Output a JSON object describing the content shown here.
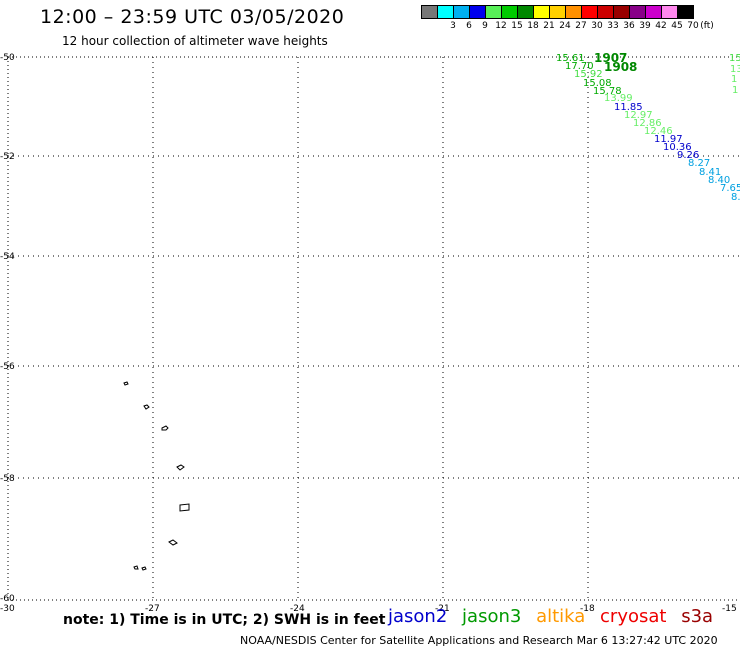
{
  "header": {
    "title": "12:00 – 23:59 UTC 03/05/2020",
    "subtitle": "12 hour collection of altimeter wave heights"
  },
  "legend": {
    "unit": "(ft)",
    "items": [
      {
        "label": "",
        "color": "#777777"
      },
      {
        "label": "3",
        "color": "#00ffff"
      },
      {
        "label": "6",
        "color": "#00b0f0"
      },
      {
        "label": "9",
        "color": "#0000ee"
      },
      {
        "label": "12",
        "color": "#58f058"
      },
      {
        "label": "15",
        "color": "#00cc00"
      },
      {
        "label": "18",
        "color": "#008800"
      },
      {
        "label": "21",
        "color": "#ffff00"
      },
      {
        "label": "24",
        "color": "#ffd000"
      },
      {
        "label": "27",
        "color": "#ff9000"
      },
      {
        "label": "30",
        "color": "#ff0000"
      },
      {
        "label": "33",
        "color": "#cc0000"
      },
      {
        "label": "36",
        "color": "#990000"
      },
      {
        "label": "39",
        "color": "#880088"
      },
      {
        "label": "42",
        "color": "#cc00cc"
      },
      {
        "label": "45",
        "color": "#ff88ee"
      },
      {
        "label": "70",
        "color": "#000000"
      }
    ]
  },
  "axes": {
    "x_ticks": [
      "-30",
      "-27",
      "-24",
      "-21",
      "-18",
      "-15"
    ],
    "y_ticks": [
      "-50",
      "-52",
      "-54",
      "-56",
      "-58",
      "-60"
    ]
  },
  "track_points": [
    {
      "text": "15.61",
      "color": "#00aa00"
    },
    {
      "text": "17.70",
      "color": "#00aa00"
    },
    {
      "text": "15.92",
      "color": "#44dd44"
    },
    {
      "text": "15.08",
      "color": "#00aa00"
    },
    {
      "text": "15.78",
      "color": "#00aa00"
    },
    {
      "text": "13.99",
      "color": "#66ee66"
    },
    {
      "text": "11.85",
      "color": "#0000cc"
    },
    {
      "text": "12.97",
      "color": "#66ee66"
    },
    {
      "text": "12.86",
      "color": "#66ee66"
    },
    {
      "text": "12.46",
      "color": "#66ee66"
    },
    {
      "text": "11.97",
      "color": "#0000cc"
    },
    {
      "text": "10.36",
      "color": "#0000cc"
    },
    {
      "text": "9.26",
      "color": "#0000cc"
    },
    {
      "text": "8.27",
      "color": "#00a0e0"
    },
    {
      "text": "8.41",
      "color": "#00a0e0"
    },
    {
      "text": "8.40",
      "color": "#00a0e0"
    },
    {
      "text": "7.65",
      "color": "#00a0e0"
    },
    {
      "text": "8.",
      "color": "#00a0e0"
    }
  ],
  "track_times": [
    {
      "text": "1907",
      "color": "#008800"
    },
    {
      "text": "1908",
      "color": "#008800"
    }
  ],
  "edge_points": [
    {
      "text": "15",
      "color": "#44dd44"
    },
    {
      "text": "13",
      "color": "#66ee66"
    },
    {
      "text": "1",
      "color": "#66ee66"
    },
    {
      "text": "1",
      "color": "#66ee66"
    }
  ],
  "note": "note: 1) Time is in UTC; 2) SWH is in feet",
  "satellites": [
    {
      "name": "jason2",
      "color": "#0000cc"
    },
    {
      "name": "jason3",
      "color": "#009900"
    },
    {
      "name": "altika",
      "color": "#ff9900"
    },
    {
      "name": "cryosat",
      "color": "#ee0000"
    },
    {
      "name": "s3a",
      "color": "#990000"
    }
  ],
  "footer": "NOAA/NESDIS Center for Satellite Applications and Research    Mar  6 13:27:42 UTC 2020"
}
